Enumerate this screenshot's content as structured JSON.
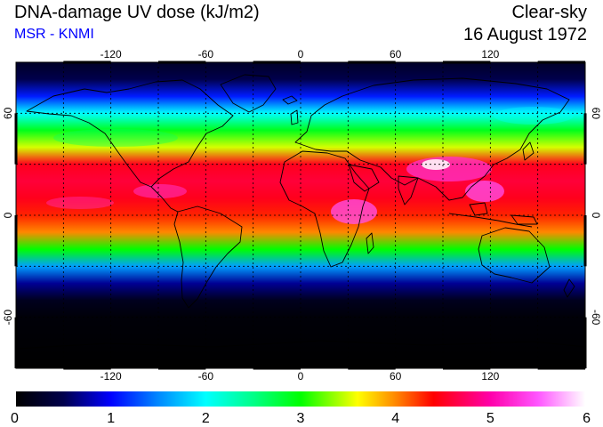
{
  "header": {
    "title": "DNA-damage UV dose (kJ/m2)",
    "source": "MSR - KNMI",
    "condition": "Clear-sky",
    "date": "16 August 1972"
  },
  "colors": {
    "source_text": "#0000ff",
    "frame": "#000000",
    "coastline": "#000000",
    "grid": "#000000"
  },
  "map": {
    "projection": "equirectangular",
    "lon_range": [
      -180,
      180
    ],
    "lat_range": [
      -90,
      90
    ],
    "grid_on": true,
    "lon_tick_labels": [
      {
        "value": -120,
        "label": "-120"
      },
      {
        "value": -60,
        "label": "-60"
      },
      {
        "value": 0,
        "label": "0"
      },
      {
        "value": 60,
        "label": "60"
      },
      {
        "value": 120,
        "label": "120"
      }
    ],
    "lat_tick_labels": [
      {
        "value": 60,
        "label": "60"
      },
      {
        "value": 0,
        "label": "0"
      },
      {
        "value": -60,
        "label": "-60"
      }
    ]
  },
  "colorbar": {
    "range": [
      0,
      6
    ],
    "tick_labels": [
      "0",
      "1",
      "2",
      "3",
      "4",
      "5",
      "6"
    ],
    "color_stops": [
      {
        "value": 0.0,
        "color": "#000000"
      },
      {
        "value": 0.5,
        "color": "#00004c"
      },
      {
        "value": 1.0,
        "color": "#0000ff"
      },
      {
        "value": 1.5,
        "color": "#0088ff"
      },
      {
        "value": 2.0,
        "color": "#00ffff"
      },
      {
        "value": 2.5,
        "color": "#00ff88"
      },
      {
        "value": 3.0,
        "color": "#00ff00"
      },
      {
        "value": 3.4,
        "color": "#aaff00"
      },
      {
        "value": 3.6,
        "color": "#ffff00"
      },
      {
        "value": 4.0,
        "color": "#ff8800"
      },
      {
        "value": 4.4,
        "color": "#ff0000"
      },
      {
        "value": 5.0,
        "color": "#ff00aa"
      },
      {
        "value": 5.5,
        "color": "#ff55ff"
      },
      {
        "value": 6.0,
        "color": "#ffffff"
      }
    ]
  },
  "dose_profile": [
    {
      "lat": 90,
      "dose": 0.25
    },
    {
      "lat": 80,
      "dose": 0.5
    },
    {
      "lat": 70,
      "dose": 1.1
    },
    {
      "lat": 60,
      "dose": 2.0
    },
    {
      "lat": 50,
      "dose": 2.9
    },
    {
      "lat": 40,
      "dose": 3.5
    },
    {
      "lat": 30,
      "dose": 4.5
    },
    {
      "lat": 20,
      "dose": 4.6
    },
    {
      "lat": 10,
      "dose": 4.5
    },
    {
      "lat": 0,
      "dose": 4.3
    },
    {
      "lat": -10,
      "dose": 4.0
    },
    {
      "lat": -20,
      "dose": 3.0
    },
    {
      "lat": -30,
      "dose": 1.6
    },
    {
      "lat": -40,
      "dose": 0.7
    },
    {
      "lat": -50,
      "dose": 0.2
    },
    {
      "lat": -60,
      "dose": 0.05
    },
    {
      "lat": -90,
      "dose": 0.0
    }
  ]
}
